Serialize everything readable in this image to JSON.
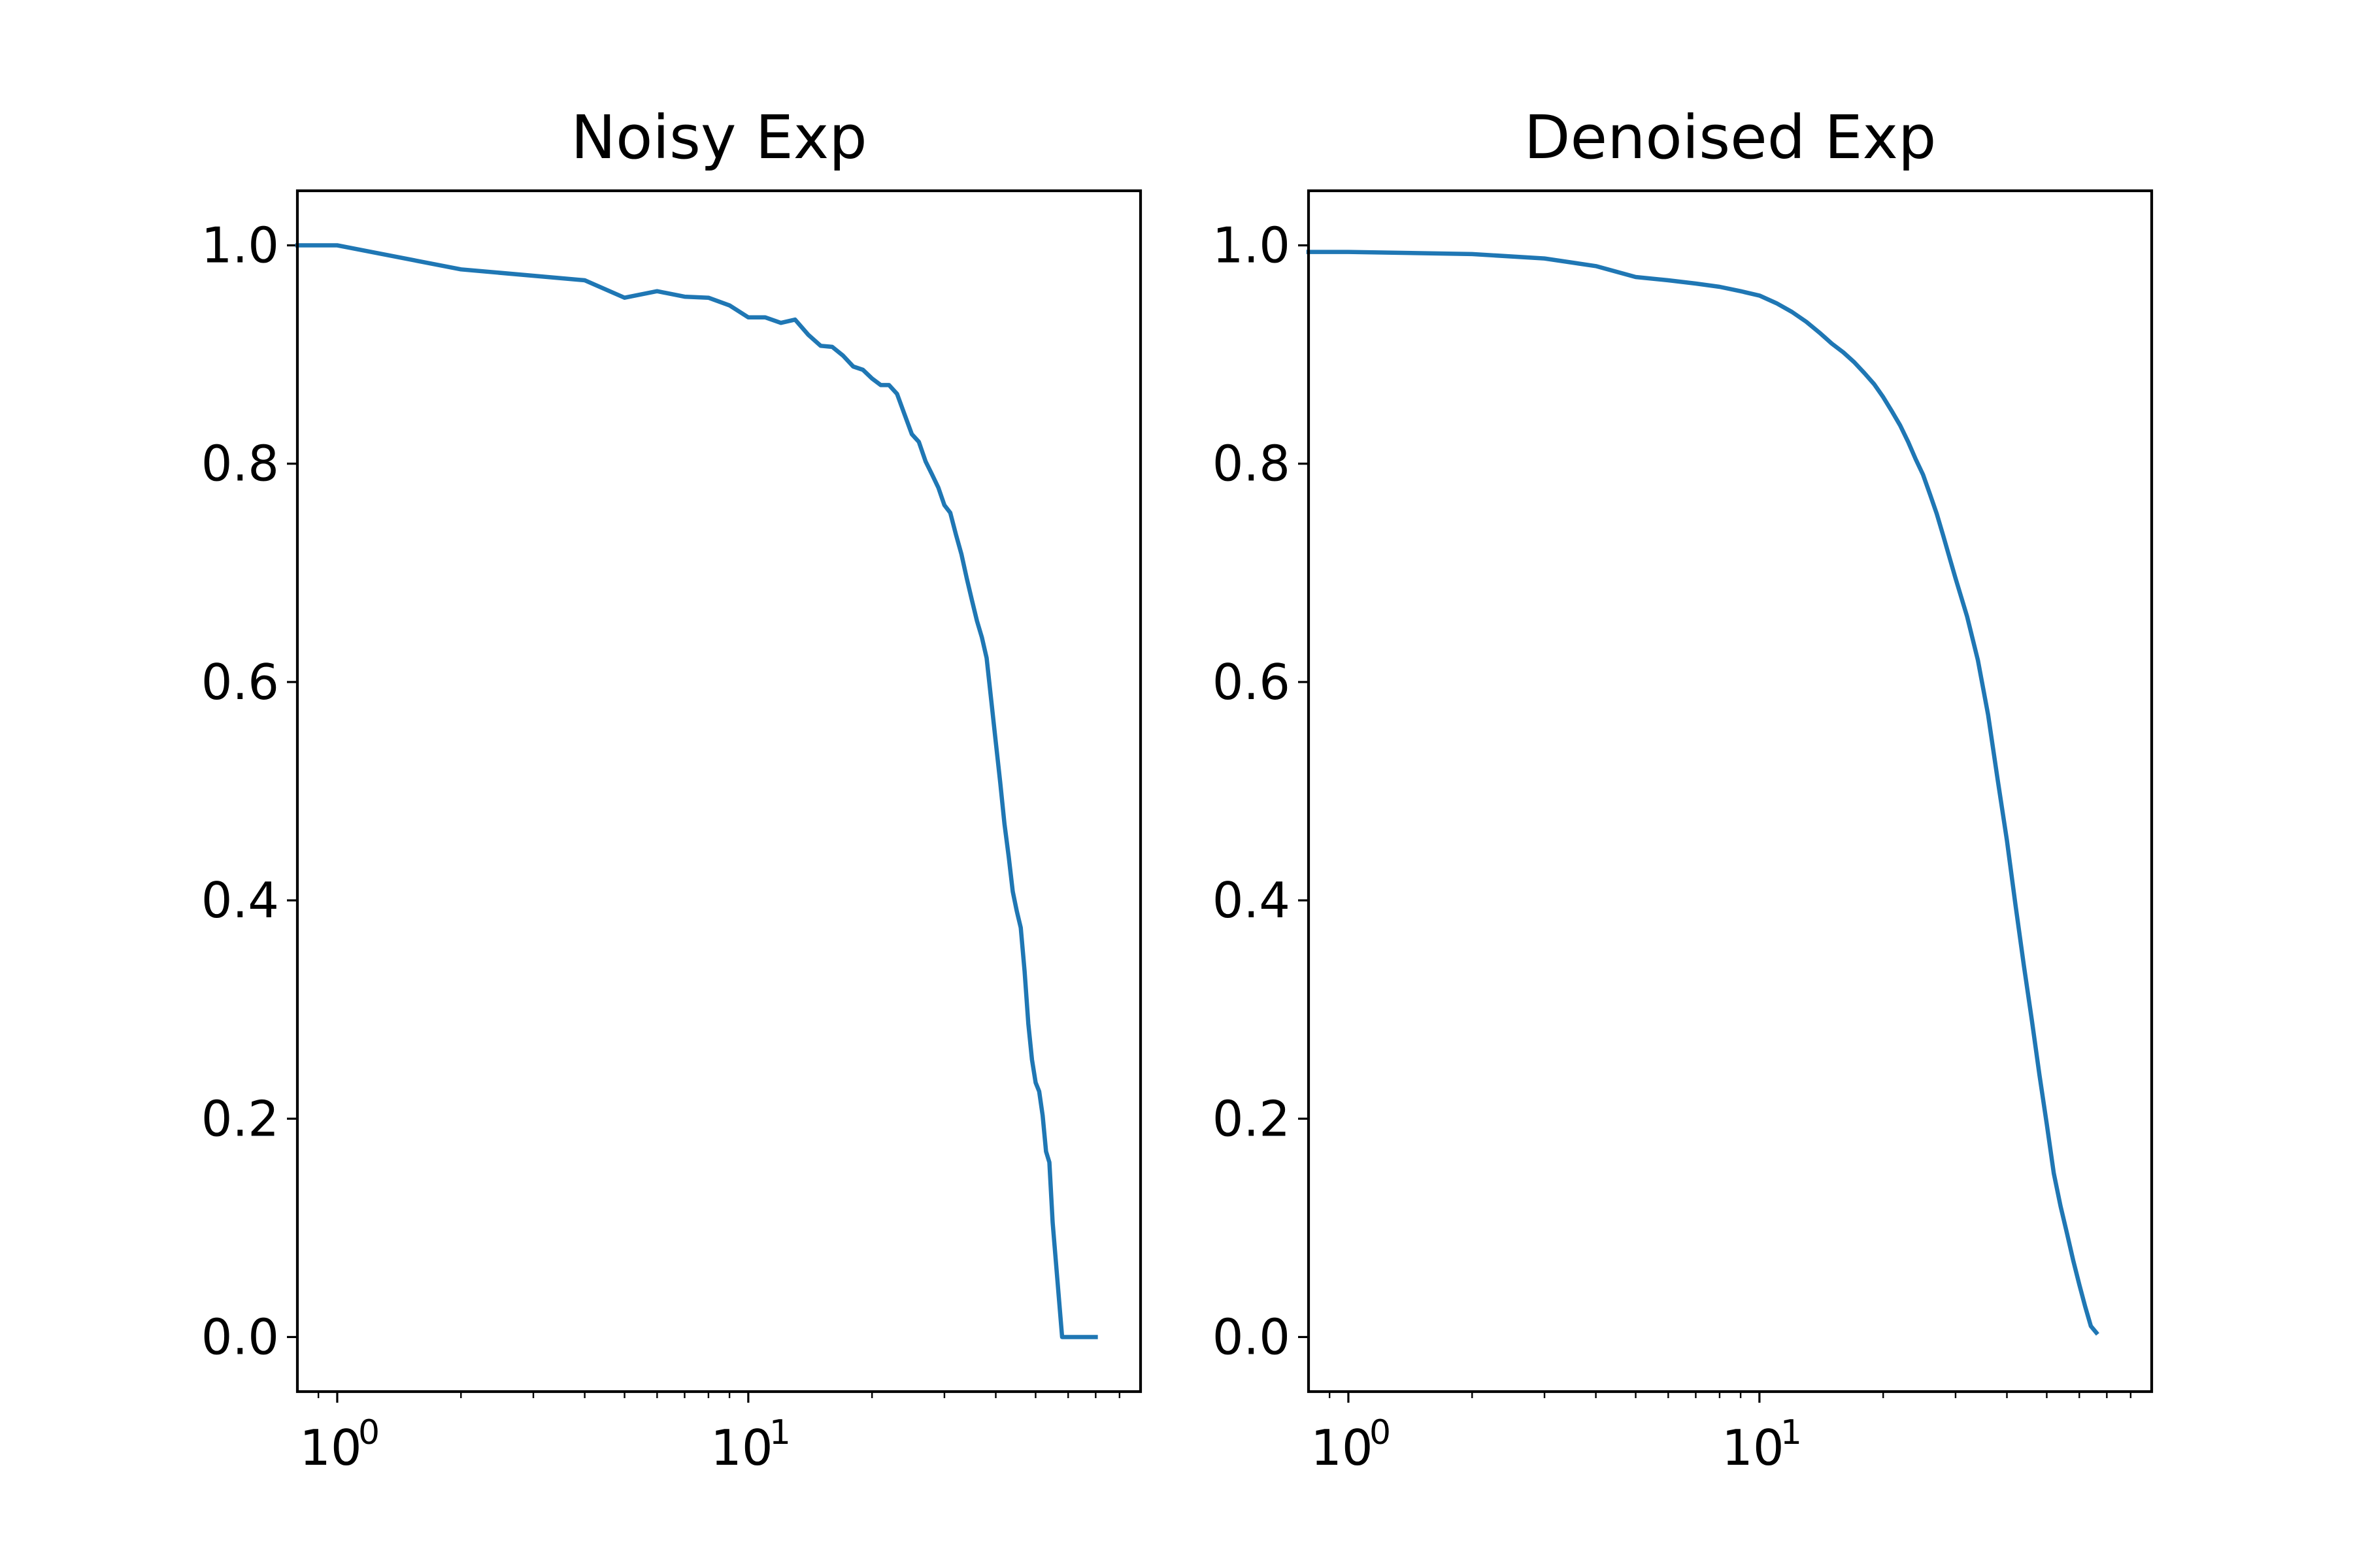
{
  "chart_data": [
    {
      "type": "line",
      "title": "Noisy Exp",
      "xlabel": "",
      "ylabel": "",
      "xscale": "log",
      "xlim": [
        0.8,
        90
      ],
      "ylim": [
        -0.05,
        1.05
      ],
      "yticks": [
        "0.0",
        "0.2",
        "0.4",
        "0.6",
        "0.8",
        "1.0"
      ],
      "yticks_values": [
        0.0,
        0.2,
        0.4,
        0.6,
        0.8,
        1.0
      ],
      "xticks": [
        {
          "base": "10",
          "exp": "0",
          "value": 1
        },
        {
          "base": "10",
          "exp": "1",
          "value": 10
        }
      ],
      "grid": false,
      "color": "#1f77b4",
      "series": [
        {
          "x": [
            0.8,
            1,
            2,
            4,
            5,
            6,
            7,
            8,
            9,
            10,
            11,
            12,
            13,
            14,
            15,
            16,
            17,
            18,
            19,
            20,
            21,
            22,
            23,
            24,
            25,
            26,
            27,
            28,
            29,
            30,
            31,
            32,
            33,
            34,
            35,
            36,
            37,
            38,
            39,
            40,
            41,
            42,
            43,
            44,
            45,
            46,
            47,
            48,
            49,
            50,
            51,
            52,
            53,
            54,
            55,
            58,
            62,
            66,
            70
          ],
          "y": [
            1.0,
            1.0,
            0.978,
            0.968,
            0.952,
            0.958,
            0.953,
            0.952,
            0.945,
            0.934,
            0.934,
            0.929,
            0.932,
            0.918,
            0.908,
            0.907,
            0.899,
            0.889,
            0.886,
            0.878,
            0.872,
            0.872,
            0.864,
            0.845,
            0.827,
            0.82,
            0.802,
            0.79,
            0.778,
            0.762,
            0.755,
            0.735,
            0.717,
            0.695,
            0.675,
            0.656,
            0.641,
            0.622,
            0.583,
            0.545,
            0.508,
            0.47,
            0.44,
            0.408,
            0.39,
            0.375,
            0.335,
            0.287,
            0.254,
            0.233,
            0.225,
            0.203,
            0.17,
            0.16,
            0.105,
            0.0,
            0.0,
            0.0,
            0.0
          ]
        }
      ]
    },
    {
      "type": "line",
      "title": "Denoised Exp",
      "xlabel": "",
      "ylabel": "",
      "xscale": "log",
      "xlim": [
        0.8,
        90
      ],
      "ylim": [
        -0.05,
        1.05
      ],
      "yticks": [
        "0.0",
        "0.2",
        "0.4",
        "0.6",
        "0.8",
        "1.0"
      ],
      "yticks_values": [
        0.0,
        0.2,
        0.4,
        0.6,
        0.8,
        1.0
      ],
      "xticks": [
        {
          "base": "10",
          "exp": "0",
          "value": 1
        },
        {
          "base": "10",
          "exp": "1",
          "value": 10
        }
      ],
      "grid": false,
      "color": "#1f77b4",
      "series": [
        {
          "x": [
            0.8,
            1,
            2,
            3,
            4,
            5,
            6,
            7,
            8,
            9,
            10,
            11,
            12,
            13,
            14,
            15,
            16,
            17,
            18,
            19,
            20,
            21,
            22,
            23,
            24,
            25,
            26,
            27,
            28,
            29,
            30,
            32,
            34,
            36,
            38,
            40,
            42,
            44,
            46,
            48,
            50,
            52,
            54,
            56,
            58,
            60,
            62,
            64,
            66
          ],
          "y": [
            0.994,
            0.994,
            0.992,
            0.988,
            0.981,
            0.971,
            0.968,
            0.965,
            0.962,
            0.958,
            0.954,
            0.947,
            0.939,
            0.93,
            0.92,
            0.91,
            0.902,
            0.893,
            0.883,
            0.873,
            0.861,
            0.848,
            0.835,
            0.82,
            0.804,
            0.79,
            0.772,
            0.754,
            0.734,
            0.714,
            0.695,
            0.66,
            0.62,
            0.57,
            0.51,
            0.455,
            0.395,
            0.34,
            0.29,
            0.24,
            0.195,
            0.15,
            0.12,
            0.095,
            0.07,
            0.048,
            0.028,
            0.01,
            0.004
          ]
        }
      ]
    }
  ]
}
